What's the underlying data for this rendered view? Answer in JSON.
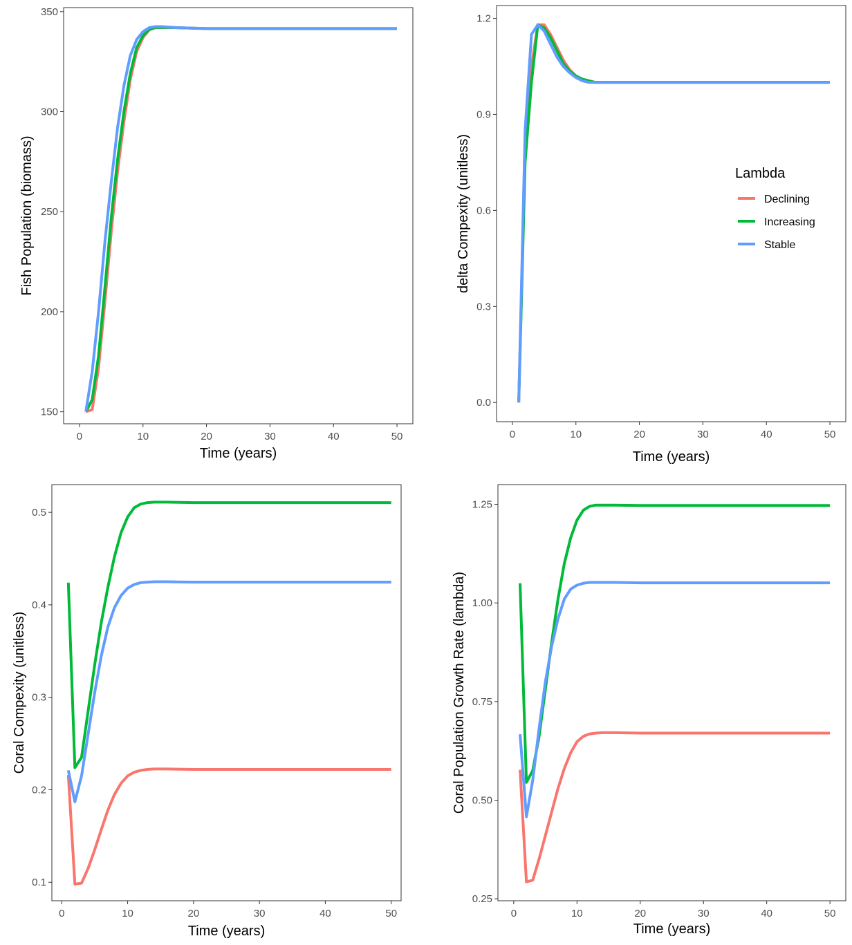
{
  "legend": {
    "title": "Lambda",
    "items": [
      {
        "label": "Declining",
        "color": "#F8766D"
      },
      {
        "label": "Increasing",
        "color": "#00BA38"
      },
      {
        "label": "Stable",
        "color": "#619CFF"
      }
    ]
  },
  "chart_data": [
    {
      "type": "line",
      "xlabel": "Time (years)",
      "ylabel": "Fish Population (biomass)",
      "xlim": [
        -2.5,
        52.5
      ],
      "ylim": [
        144,
        352
      ],
      "xticks": [
        0,
        10,
        20,
        30,
        40,
        50
      ],
      "yticks": [
        150,
        200,
        250,
        300,
        350
      ],
      "ytick_labels": [
        "150",
        "200",
        "250",
        "300",
        "350"
      ],
      "series": [
        {
          "name": "Declining",
          "color": "#F8766D",
          "x": [
            1,
            2,
            3,
            4,
            5,
            6,
            7,
            8,
            9,
            10,
            11,
            12,
            13,
            14,
            15,
            20,
            30,
            40,
            50
          ],
          "y": [
            150,
            151,
            172,
            205,
            240,
            270,
            295,
            316,
            330,
            337,
            341,
            342,
            342,
            342,
            342,
            341.5,
            341.5,
            341.5,
            341.5
          ]
        },
        {
          "name": "Increasing",
          "color": "#00BA38",
          "x": [
            1,
            2,
            3,
            4,
            5,
            6,
            7,
            8,
            9,
            10,
            11,
            12,
            13,
            14,
            15,
            20,
            30,
            40,
            50
          ],
          "y": [
            150,
            156,
            178,
            212,
            247,
            276,
            300,
            319,
            332,
            338,
            341,
            342,
            342,
            342,
            342,
            341.5,
            341.5,
            341.5,
            341.5
          ]
        },
        {
          "name": "Stable",
          "color": "#619CFF",
          "x": [
            1,
            2,
            3,
            4,
            5,
            6,
            7,
            8,
            9,
            10,
            11,
            12,
            13,
            14,
            15,
            20,
            30,
            40,
            50
          ],
          "y": [
            150,
            170,
            200,
            235,
            265,
            292,
            313,
            328,
            336,
            340,
            342,
            342.5,
            342.5,
            342.3,
            342,
            341.5,
            341.5,
            341.5,
            341.5
          ]
        }
      ]
    },
    {
      "type": "line",
      "xlabel": "Time (years)",
      "ylabel": "delta Compexity (unitless)",
      "xlim": [
        -2.5,
        52.5
      ],
      "ylim": [
        -0.06,
        1.24
      ],
      "xticks": [
        0,
        10,
        20,
        30,
        40,
        50
      ],
      "yticks": [
        0,
        0.3,
        0.6,
        0.9,
        1.2
      ],
      "ytick_labels": [
        "0.0",
        "0.3",
        "0.6",
        "0.9",
        "1.2"
      ],
      "series": [
        {
          "name": "Declining",
          "color": "#F8766D",
          "x": [
            1,
            2,
            3,
            4,
            5,
            6,
            7,
            8,
            9,
            10,
            11,
            12,
            13,
            14,
            15,
            20,
            30,
            40,
            50
          ],
          "y": [
            0,
            0.8,
            1.05,
            1.18,
            1.18,
            1.15,
            1.11,
            1.07,
            1.04,
            1.02,
            1.01,
            1.005,
            1.0,
            1.0,
            1.0,
            1.0,
            1.0,
            1.0,
            1.0
          ]
        },
        {
          "name": "Increasing",
          "color": "#00BA38",
          "x": [
            1,
            2,
            3,
            4,
            5,
            6,
            7,
            8,
            9,
            10,
            11,
            12,
            13,
            14,
            15,
            20,
            30,
            40,
            50
          ],
          "y": [
            0,
            0.75,
            1.0,
            1.18,
            1.17,
            1.14,
            1.1,
            1.06,
            1.035,
            1.02,
            1.01,
            1.005,
            1.0,
            1.0,
            1.0,
            1.0,
            1.0,
            1.0,
            1.0
          ]
        },
        {
          "name": "Stable",
          "color": "#619CFF",
          "x": [
            1,
            2,
            3,
            4,
            5,
            6,
            7,
            8,
            9,
            10,
            11,
            12,
            13,
            14,
            15,
            20,
            30,
            40,
            50
          ],
          "y": [
            0,
            0.85,
            1.15,
            1.18,
            1.16,
            1.12,
            1.08,
            1.05,
            1.03,
            1.015,
            1.005,
            1.0,
            1.0,
            1.0,
            1.0,
            1.0,
            1.0,
            1.0,
            1.0
          ]
        }
      ]
    },
    {
      "type": "line",
      "xlabel": "Time (years)",
      "ylabel": "Coral Compexity (unitless)",
      "xlim": [
        -1.5,
        51.5
      ],
      "ylim": [
        0.08,
        0.53
      ],
      "xticks": [
        0,
        10,
        20,
        30,
        40,
        50
      ],
      "yticks": [
        0.1,
        0.2,
        0.3,
        0.4,
        0.5
      ],
      "ytick_labels": [
        "0.1",
        "0.2",
        "0.3",
        "0.4",
        "0.5"
      ],
      "series": [
        {
          "name": "Declining",
          "color": "#F8766D",
          "x": [
            1,
            2,
            3,
            4,
            5,
            6,
            7,
            8,
            9,
            10,
            11,
            12,
            13,
            14,
            15,
            16,
            20,
            30,
            40,
            50
          ],
          "y": [
            0.216,
            0.098,
            0.099,
            0.115,
            0.135,
            0.157,
            0.178,
            0.195,
            0.207,
            0.215,
            0.219,
            0.221,
            0.222,
            0.2225,
            0.2225,
            0.2225,
            0.222,
            0.222,
            0.222,
            0.222
          ]
        },
        {
          "name": "Increasing",
          "color": "#00BA38",
          "x": [
            1,
            2,
            3,
            4,
            5,
            6,
            7,
            8,
            9,
            10,
            11,
            12,
            13,
            14,
            15,
            16,
            20,
            30,
            40,
            50
          ],
          "y": [
            0.424,
            0.224,
            0.235,
            0.285,
            0.335,
            0.381,
            0.419,
            0.452,
            0.478,
            0.495,
            0.505,
            0.509,
            0.5105,
            0.511,
            0.511,
            0.511,
            0.5105,
            0.5105,
            0.5105,
            0.5105
          ]
        },
        {
          "name": "Stable",
          "color": "#619CFF",
          "x": [
            1,
            2,
            3,
            4,
            5,
            6,
            7,
            8,
            9,
            10,
            11,
            12,
            13,
            14,
            15,
            16,
            20,
            30,
            40,
            50
          ],
          "y": [
            0.221,
            0.187,
            0.215,
            0.26,
            0.305,
            0.345,
            0.376,
            0.397,
            0.41,
            0.418,
            0.422,
            0.424,
            0.4245,
            0.425,
            0.425,
            0.425,
            0.4245,
            0.4245,
            0.4245,
            0.4245
          ]
        }
      ]
    },
    {
      "type": "line",
      "xlabel": "Time (years)",
      "ylabel": "Coral Population Growth Rate (lambda)",
      "xlim": [
        -2.5,
        52.5
      ],
      "ylim": [
        0.245,
        1.3
      ],
      "xticks": [
        0,
        10,
        20,
        30,
        40,
        50
      ],
      "yticks": [
        0.25,
        0.5,
        0.75,
        1.0,
        1.25
      ],
      "ytick_labels": [
        "0.25",
        "0.50",
        "0.75",
        "1.00",
        "1.25"
      ],
      "series": [
        {
          "name": "Declining",
          "color": "#F8766D",
          "x": [
            1,
            2,
            3,
            4,
            5,
            6,
            7,
            8,
            9,
            10,
            11,
            12,
            13,
            14,
            15,
            16,
            20,
            30,
            40,
            50
          ],
          "y": [
            0.577,
            0.293,
            0.297,
            0.35,
            0.41,
            0.47,
            0.53,
            0.58,
            0.62,
            0.648,
            0.662,
            0.668,
            0.67,
            0.671,
            0.671,
            0.671,
            0.67,
            0.67,
            0.67,
            0.67
          ]
        },
        {
          "name": "Increasing",
          "color": "#00BA38",
          "x": [
            1,
            2,
            3,
            4,
            5,
            6,
            7,
            8,
            9,
            10,
            11,
            12,
            13,
            14,
            15,
            16,
            20,
            30,
            40,
            50
          ],
          "y": [
            1.05,
            0.545,
            0.575,
            0.66,
            0.78,
            0.9,
            1.01,
            1.1,
            1.165,
            1.21,
            1.235,
            1.245,
            1.248,
            1.248,
            1.248,
            1.248,
            1.247,
            1.247,
            1.247,
            1.247
          ]
        },
        {
          "name": "Stable",
          "color": "#619CFF",
          "x": [
            1,
            2,
            3,
            4,
            5,
            6,
            7,
            8,
            9,
            10,
            11,
            12,
            13,
            14,
            15,
            16,
            20,
            30,
            40,
            50
          ],
          "y": [
            0.667,
            0.458,
            0.55,
            0.68,
            0.8,
            0.89,
            0.96,
            1.01,
            1.035,
            1.045,
            1.05,
            1.052,
            1.052,
            1.052,
            1.052,
            1.052,
            1.051,
            1.051,
            1.051,
            1.051
          ]
        }
      ]
    }
  ]
}
